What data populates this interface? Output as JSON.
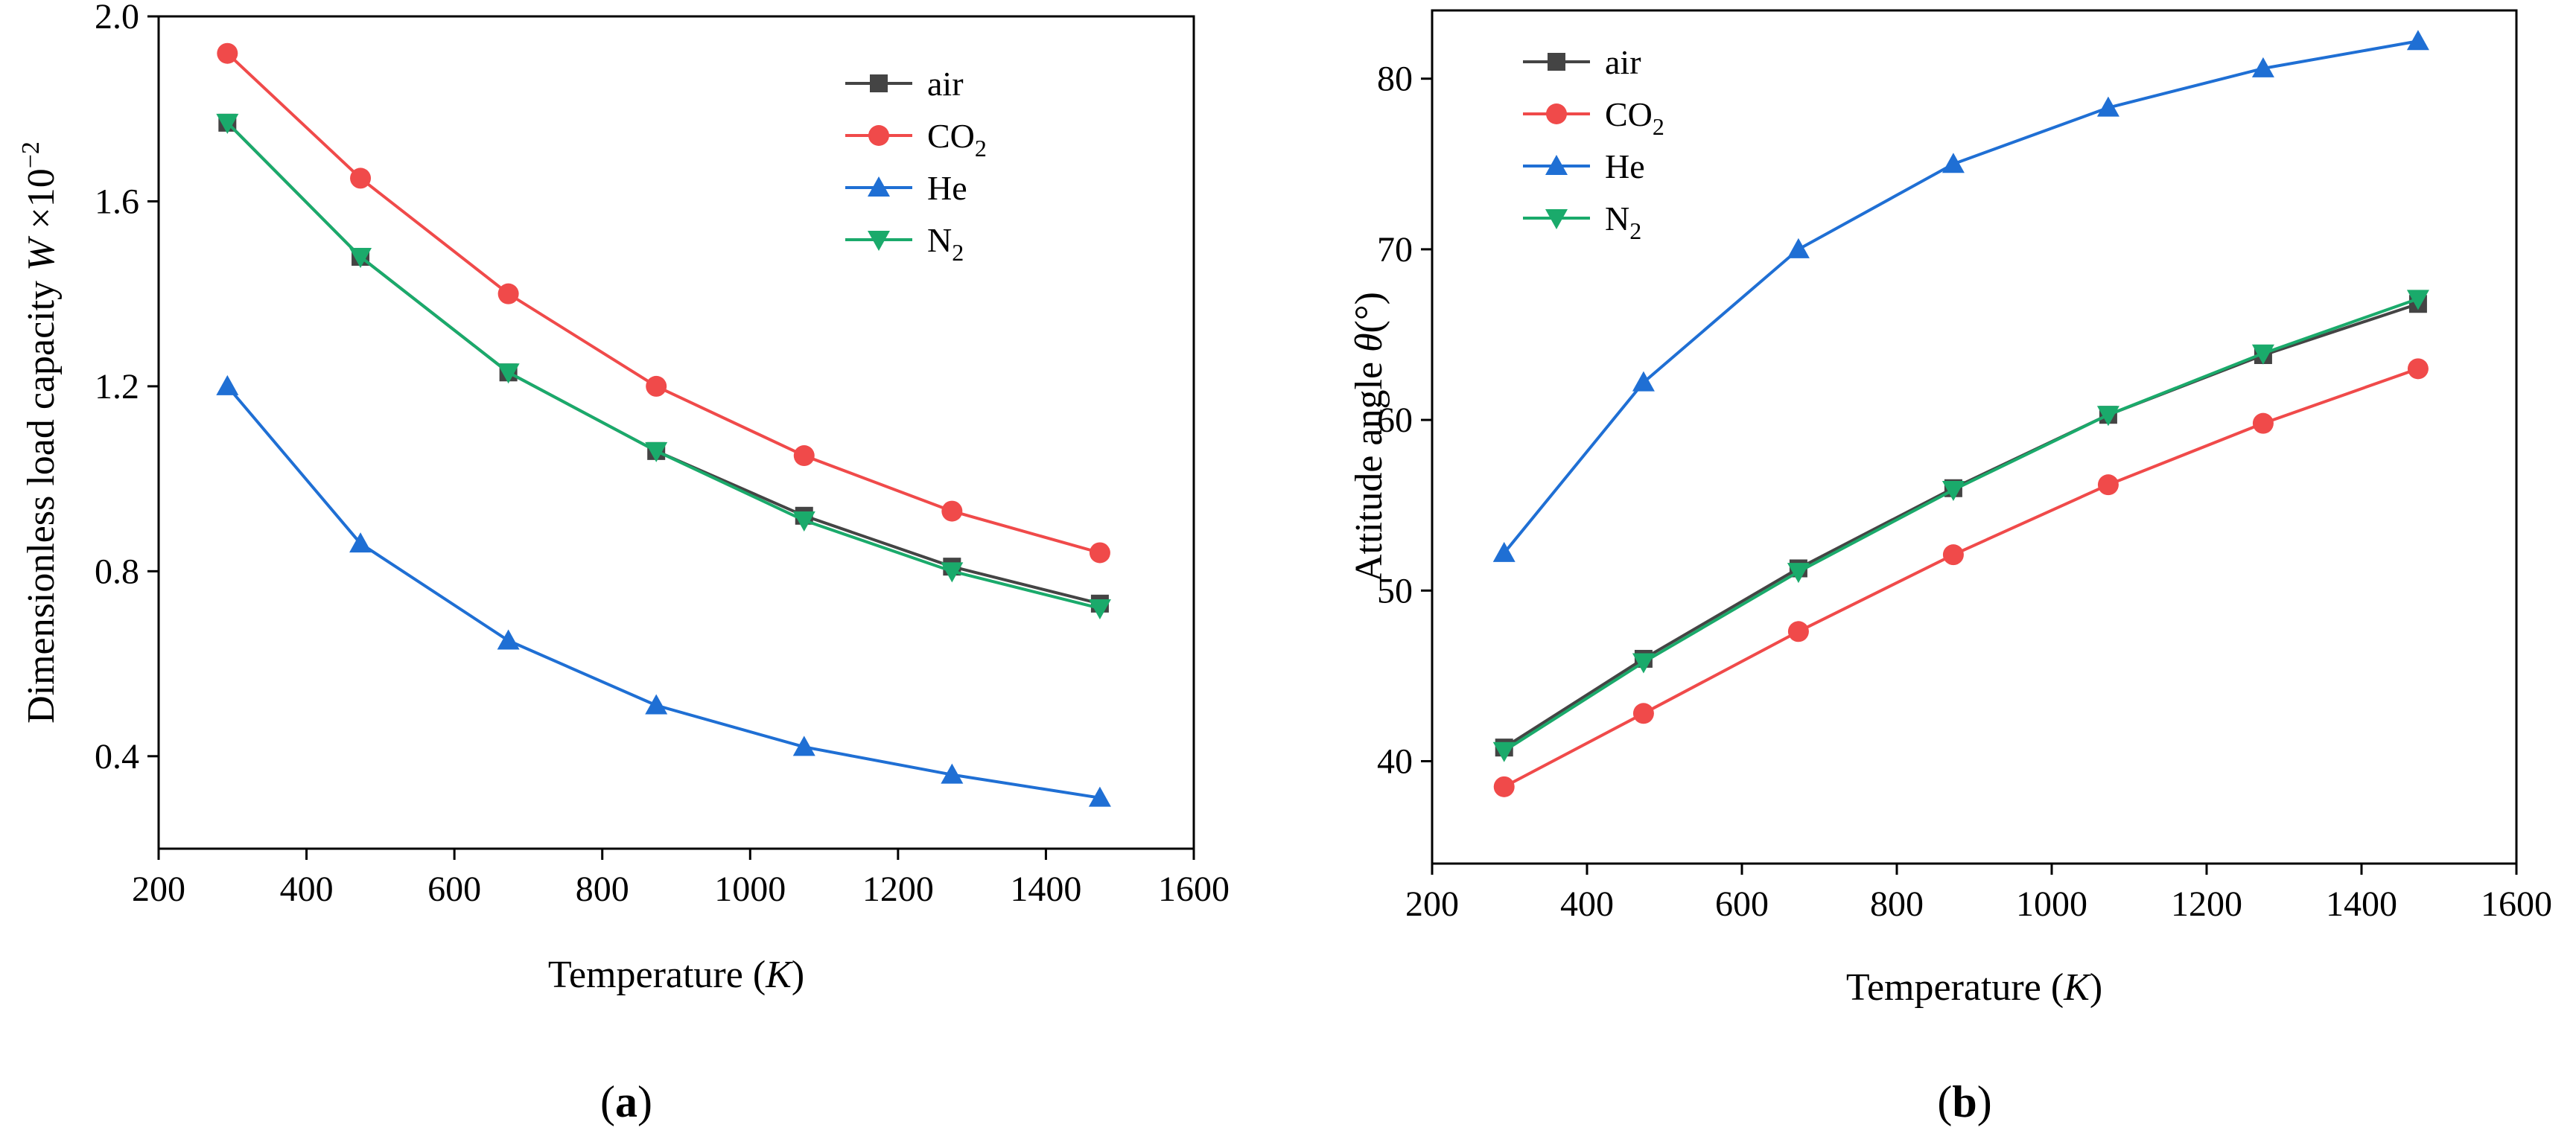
{
  "chart_data": [
    {
      "type": "line",
      "panel_label": "a",
      "xlabel": "Temperature",
      "xlabel_unit": "K",
      "ylabel": "Dimensionless load capacity",
      "ylabel_symbol": "W",
      "ylabel_scale": "×10",
      "ylabel_exponent": "−2",
      "xlim": [
        200,
        1600
      ],
      "ylim": [
        0.2,
        2.0
      ],
      "xticks": [
        200,
        400,
        600,
        800,
        1000,
        1200,
        1400,
        1600
      ],
      "yticks": [
        0.4,
        0.8,
        1.2,
        1.6,
        2.0
      ],
      "ytick_labels": [
        "0.4",
        "0.8",
        "1.2",
        "1.6",
        "2.0"
      ],
      "x": [
        293,
        473,
        673,
        873,
        1073,
        1273,
        1473
      ],
      "legend_position": "top-right",
      "series": [
        {
          "name": "air",
          "sub": "",
          "color": "#444444",
          "marker": "square",
          "values": [
            1.77,
            1.48,
            1.23,
            1.06,
            0.92,
            0.81,
            0.73
          ]
        },
        {
          "name": "CO",
          "sub": "2",
          "color": "#f04a4a",
          "marker": "circle",
          "values": [
            1.92,
            1.65,
            1.4,
            1.2,
            1.05,
            0.93,
            0.84
          ]
        },
        {
          "name": "He",
          "sub": "",
          "color": "#1f6fd4",
          "marker": "triangle-up",
          "values": [
            1.2,
            0.86,
            0.65,
            0.51,
            0.42,
            0.36,
            0.31
          ]
        },
        {
          "name": "N",
          "sub": "2",
          "color": "#1aaa6b",
          "marker": "triangle-down",
          "values": [
            1.77,
            1.48,
            1.23,
            1.06,
            0.91,
            0.8,
            0.72
          ]
        }
      ]
    },
    {
      "type": "line",
      "panel_label": "b",
      "xlabel": "Temperature",
      "xlabel_unit": "K",
      "ylabel": "Attitude angle",
      "ylabel_symbol": "θ",
      "ylabel_unit": "(°)",
      "xlim": [
        200,
        1600
      ],
      "ylim": [
        34,
        84
      ],
      "xticks": [
        200,
        400,
        600,
        800,
        1000,
        1200,
        1400,
        1600
      ],
      "yticks": [
        40,
        50,
        60,
        70,
        80
      ],
      "ytick_labels": [
        "40",
        "50",
        "60",
        "70",
        "80"
      ],
      "x": [
        293,
        473,
        673,
        873,
        1073,
        1273,
        1473
      ],
      "legend_position": "top-left",
      "series": [
        {
          "name": "air",
          "sub": "",
          "color": "#444444",
          "marker": "square",
          "values": [
            40.8,
            46.0,
            51.3,
            56.0,
            60.3,
            63.8,
            66.8
          ]
        },
        {
          "name": "CO",
          "sub": "2",
          "color": "#f04a4a",
          "marker": "circle",
          "values": [
            38.5,
            42.8,
            47.6,
            52.1,
            56.2,
            59.8,
            63.0
          ]
        },
        {
          "name": "He",
          "sub": "",
          "color": "#1f6fd4",
          "marker": "triangle-up",
          "values": [
            52.2,
            62.2,
            70.0,
            75.0,
            78.3,
            80.6,
            82.2
          ]
        },
        {
          "name": "N",
          "sub": "2",
          "color": "#1aaa6b",
          "marker": "triangle-down",
          "values": [
            40.6,
            45.8,
            51.1,
            55.9,
            60.3,
            63.9,
            67.1
          ]
        }
      ]
    }
  ]
}
